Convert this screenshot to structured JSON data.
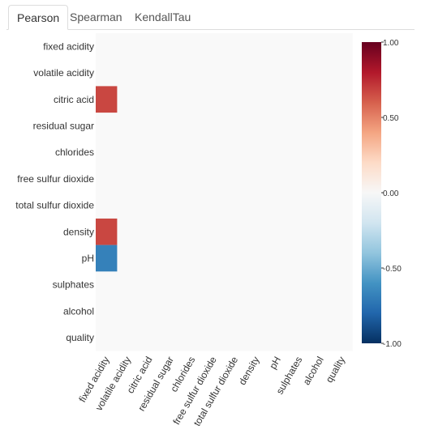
{
  "tabs": [
    {
      "label": "Pearson",
      "active": true
    },
    {
      "label": "Spearman",
      "active": false
    },
    {
      "label": "KendallTau",
      "active": false
    }
  ],
  "chart_data": {
    "type": "heatmap",
    "rows": [
      "fixed acidity",
      "volatile acidity",
      "citric acid",
      "residual sugar",
      "chlorides",
      "free sulfur dioxide",
      "total sulfur dioxide",
      "density",
      "pH",
      "sulphates",
      "alcohol",
      "quality"
    ],
    "columns": [
      "fixed acidity",
      "volatile acidity",
      "citric acid",
      "residual sugar",
      "chlorides",
      "free sulfur dioxide",
      "total sulfur dioxide",
      "density",
      "pH",
      "sulphates",
      "alcohol",
      "quality"
    ],
    "cells": [
      {
        "row": "citric acid",
        "column": "fixed acidity",
        "value": 0.67
      },
      {
        "row": "density",
        "column": "fixed acidity",
        "value": 0.67
      },
      {
        "row": "pH",
        "column": "fixed acidity",
        "value": -0.68
      }
    ],
    "colorbar": {
      "range": [
        -1,
        1
      ],
      "ticks": [
        "1.00",
        "0.50",
        "0.00",
        "-0.50",
        "-1.00"
      ],
      "tick_values": [
        1,
        0.5,
        0,
        -0.5,
        -1
      ],
      "colors": [
        "#67001f",
        "#b2182b",
        "#d6604d",
        "#f4a582",
        "#fddbc7",
        "#f7f7f7",
        "#d1e5f0",
        "#92c5de",
        "#4393c3",
        "#2166ac",
        "#053061"
      ]
    },
    "background": "#f9f9f9"
  }
}
